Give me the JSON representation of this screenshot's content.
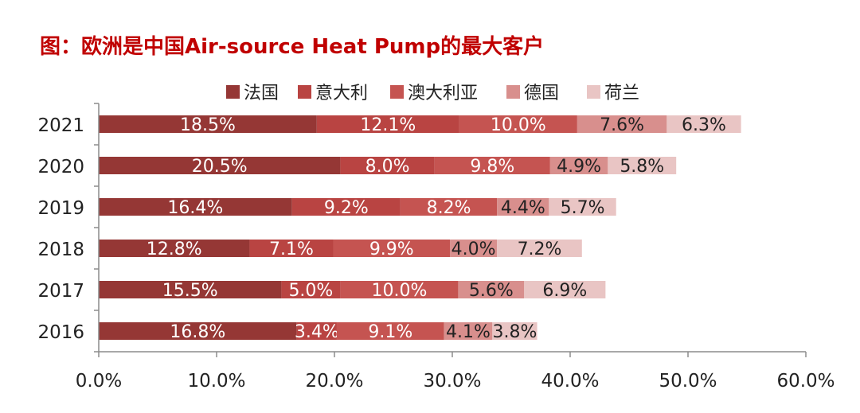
{
  "title": "图：欧洲是中国Air-source Heat Pump的最大客户",
  "chart_data": {
    "type": "bar",
    "orientation": "horizontal",
    "stacked": true,
    "title": "图：欧洲是中国Air-source Heat Pump的最大客户",
    "categories": [
      "2021",
      "2020",
      "2019",
      "2018",
      "2017",
      "2016"
    ],
    "series": [
      {
        "name": "法国",
        "color": "#953735",
        "values": [
          18.5,
          20.5,
          16.4,
          12.8,
          15.5,
          16.8
        ]
      },
      {
        "name": "意大利",
        "color": "#b94442",
        "values": [
          12.1,
          8.0,
          9.2,
          7.1,
          5.0,
          3.4
        ]
      },
      {
        "name": "澳大利亚",
        "color": "#c55451",
        "values": [
          10.0,
          9.8,
          8.2,
          9.9,
          10.0,
          9.1
        ]
      },
      {
        "name": "德国",
        "color": "#d88f8d",
        "values": [
          7.6,
          4.9,
          4.4,
          4.0,
          5.6,
          4.1
        ]
      },
      {
        "name": "荷兰",
        "color": "#e9c5c4",
        "values": [
          6.3,
          5.8,
          5.7,
          7.2,
          6.9,
          3.8
        ]
      }
    ],
    "xlim": [
      0,
      60
    ],
    "xticks": [
      "0.0%",
      "10.0%",
      "20.0%",
      "30.0%",
      "40.0%",
      "50.0%",
      "60.0%"
    ],
    "value_suffix": "%",
    "legend_position": "top",
    "grid": false
  }
}
